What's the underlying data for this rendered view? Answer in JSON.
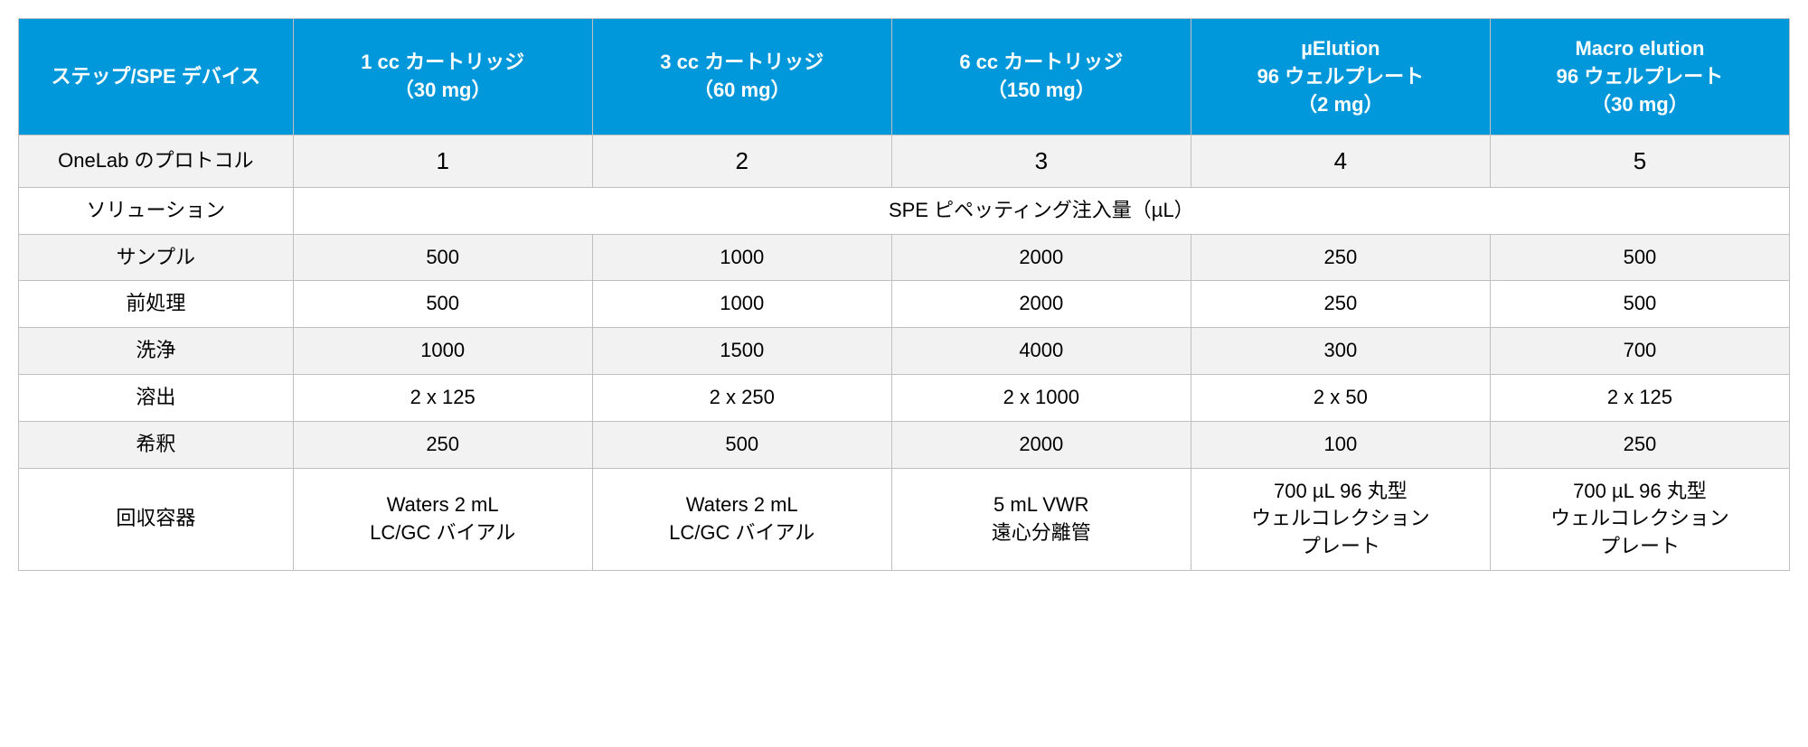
{
  "table": {
    "type": "table",
    "header_bg": "#0098db",
    "header_text_color": "#ffffff",
    "border_color": "#bfbfbf",
    "alt_row_bg": "#f2f2f2",
    "plain_row_bg": "#ffffff",
    "header_fontsize_pt": 16,
    "body_fontsize_pt": 16,
    "columns": [
      {
        "label": "ステップ/SPE デバイス"
      },
      {
        "label": "1 cc カートリッジ\n（30 mg）"
      },
      {
        "label": "3 cc カートリッジ\n（60 mg）"
      },
      {
        "label": "6 cc カートリッジ\n（150 mg）"
      },
      {
        "label": "µElution\n96 ウェルプレート\n（2 mg）"
      },
      {
        "label": "Macro elution\n96 ウェルプレート\n（30 mg）"
      }
    ],
    "protocol_row": {
      "label": "OneLab のプロトコル",
      "values": [
        "1",
        "2",
        "3",
        "4",
        "5"
      ]
    },
    "section_label": "ソリューション",
    "section_span_text": "SPE ピペッティング注入量（µL）",
    "rows": [
      {
        "label": "サンプル",
        "values": [
          "500",
          "1000",
          "2000",
          "250",
          "500"
        ],
        "alt": true
      },
      {
        "label": "前処理",
        "values": [
          "500",
          "1000",
          "2000",
          "250",
          "500"
        ],
        "alt": false
      },
      {
        "label": "洗浄",
        "values": [
          "1000",
          "1500",
          "4000",
          "300",
          "700"
        ],
        "alt": true
      },
      {
        "label": "溶出",
        "values": [
          "2 x 125",
          "2 x 250",
          "2 x 1000",
          "2 x 50",
          "2 x 125"
        ],
        "alt": false
      },
      {
        "label": "希釈",
        "values": [
          "250",
          "500",
          "2000",
          "100",
          "250"
        ],
        "alt": true
      }
    ],
    "vessel_row": {
      "label": "回収容器",
      "values": [
        "Waters 2 mL\nLC/GC バイアル",
        "Waters 2 mL\nLC/GC バイアル",
        "5 mL VWR\n遠心分離管",
        "700 µL 96 丸型\nウェルコレクション\nプレート",
        "700 µL 96 丸型\nウェルコレクション\nプレート"
      ]
    }
  }
}
